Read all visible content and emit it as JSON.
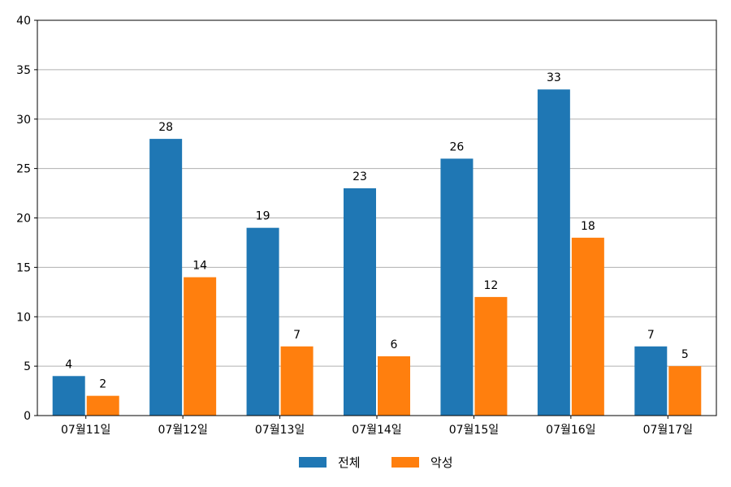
{
  "chart_data": {
    "type": "bar",
    "categories": [
      "07월11일",
      "07월12일",
      "07월13일",
      "07월14일",
      "07월15일",
      "07월16일",
      "07월17일"
    ],
    "series": [
      {
        "name": "전체",
        "values": [
          4,
          28,
          19,
          23,
          26,
          33,
          7
        ],
        "color": "#1f77b4"
      },
      {
        "name": "악성",
        "values": [
          2,
          14,
          7,
          6,
          12,
          18,
          5
        ],
        "color": "#ff7f0e"
      }
    ],
    "title": "",
    "xlabel": "",
    "ylabel": "",
    "ylim": [
      0,
      40
    ],
    "yticks": [
      0,
      5,
      10,
      15,
      20,
      25,
      30,
      35,
      40
    ],
    "grid": "horizontal",
    "legend": "bottom-center",
    "data_labels": true
  }
}
